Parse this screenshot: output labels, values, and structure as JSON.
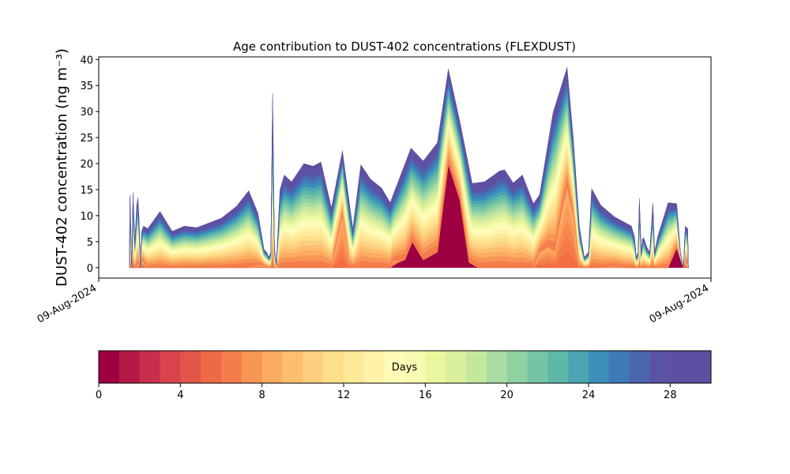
{
  "chart_data": {
    "type": "area",
    "title": "Age contribution to DUST-402 concentrations (FLEXDUST)",
    "ylabel": "DUST-402 concentration (ng m⁻³)",
    "xlabel": "",
    "ylim": [
      -2,
      40.5
    ],
    "y_ticks": [
      0,
      5,
      10,
      15,
      20,
      25,
      30,
      35,
      40
    ],
    "x_tick_labels": [
      "09-Aug-2024",
      "09-Aug-2024"
    ],
    "grid": false,
    "total": [
      [
        0.05,
        0
      ],
      [
        0.051,
        14
      ],
      [
        0.054,
        0
      ],
      [
        0.056,
        14.5
      ],
      [
        0.059,
        5
      ],
      [
        0.062,
        12
      ],
      [
        0.064,
        13.5
      ],
      [
        0.066,
        9
      ],
      [
        0.068,
        0
      ],
      [
        0.07,
        7
      ],
      [
        0.073,
        8
      ],
      [
        0.08,
        7.5
      ],
      [
        0.1,
        10.8
      ],
      [
        0.12,
        7
      ],
      [
        0.14,
        8
      ],
      [
        0.16,
        7.7
      ],
      [
        0.2,
        9.5
      ],
      [
        0.225,
        11.8
      ],
      [
        0.245,
        14.8
      ],
      [
        0.26,
        10.5
      ],
      [
        0.27,
        3.5
      ],
      [
        0.274,
        3
      ],
      [
        0.278,
        2
      ],
      [
        0.281,
        3
      ],
      [
        0.284,
        33.5
      ],
      [
        0.287,
        4
      ],
      [
        0.29,
        0.5
      ],
      [
        0.296,
        15
      ],
      [
        0.303,
        17.8
      ],
      [
        0.315,
        16.5
      ],
      [
        0.335,
        20
      ],
      [
        0.35,
        19.5
      ],
      [
        0.363,
        20.3
      ],
      [
        0.38,
        11.5
      ],
      [
        0.398,
        22.5
      ],
      [
        0.415,
        7.5
      ],
      [
        0.428,
        19.8
      ],
      [
        0.444,
        17
      ],
      [
        0.462,
        15.3
      ],
      [
        0.476,
        12.5
      ],
      [
        0.51,
        23
      ],
      [
        0.53,
        20.5
      ],
      [
        0.553,
        24
      ],
      [
        0.571,
        38.2
      ],
      [
        0.59,
        28
      ],
      [
        0.61,
        16.2
      ],
      [
        0.63,
        16.5
      ],
      [
        0.655,
        18.6
      ],
      [
        0.663,
        18.8
      ],
      [
        0.677,
        16.3
      ],
      [
        0.692,
        17.8
      ],
      [
        0.71,
        12.3
      ],
      [
        0.72,
        14
      ],
      [
        0.742,
        29.8
      ],
      [
        0.765,
        38.5
      ],
      [
        0.775,
        25
      ],
      [
        0.785,
        8
      ],
      [
        0.793,
        2
      ],
      [
        0.8,
        3
      ],
      [
        0.805,
        15.2
      ],
      [
        0.82,
        12
      ],
      [
        0.842,
        9.8
      ],
      [
        0.87,
        8
      ],
      [
        0.875,
        6
      ],
      [
        0.878,
        2
      ],
      [
        0.881,
        3
      ],
      [
        0.883,
        13.3
      ],
      [
        0.886,
        3
      ],
      [
        0.888,
        5.5
      ],
      [
        0.89,
        5.8
      ],
      [
        0.895,
        4
      ],
      [
        0.9,
        3
      ],
      [
        0.905,
        12.5
      ],
      [
        0.908,
        3
      ],
      [
        0.913,
        6
      ],
      [
        0.93,
        12.5
      ],
      [
        0.944,
        12.3
      ],
      [
        0.95,
        3
      ],
      [
        0.955,
        0
      ],
      [
        0.958,
        8
      ],
      [
        0.962,
        7.5
      ],
      [
        0.963,
        0
      ]
    ],
    "layers_note": "Stacked contribution by particle age (0–30 days), youngest at bottom",
    "young": [
      [
        0.05,
        0
      ],
      [
        0.06,
        0
      ],
      [
        0.07,
        1.5
      ],
      [
        0.08,
        0
      ],
      [
        0.15,
        0
      ],
      [
        0.245,
        0
      ],
      [
        0.265,
        0.5
      ],
      [
        0.28,
        0
      ],
      [
        0.29,
        0
      ],
      [
        0.38,
        0
      ],
      [
        0.398,
        10
      ],
      [
        0.41,
        0
      ],
      [
        0.462,
        0
      ],
      [
        0.476,
        0
      ],
      [
        0.48,
        1.2
      ],
      [
        0.5,
        1.5
      ],
      [
        0.512,
        5
      ],
      [
        0.53,
        1.5
      ],
      [
        0.553,
        3
      ],
      [
        0.571,
        20
      ],
      [
        0.59,
        13
      ],
      [
        0.605,
        1
      ],
      [
        0.62,
        0
      ],
      [
        0.71,
        0
      ],
      [
        0.72,
        3
      ],
      [
        0.735,
        4
      ],
      [
        0.745,
        3
      ],
      [
        0.755,
        10
      ],
      [
        0.765,
        15.5
      ],
      [
        0.775,
        10
      ],
      [
        0.785,
        0
      ],
      [
        0.82,
        0
      ],
      [
        0.843,
        0.3
      ],
      [
        0.86,
        0
      ],
      [
        0.93,
        0
      ],
      [
        0.944,
        3.8
      ],
      [
        0.955,
        0
      ],
      [
        0.958,
        1.5
      ],
      [
        0.963,
        0
      ]
    ],
    "deep_red": [
      [
        0.05,
        0
      ],
      [
        0.476,
        0
      ],
      [
        0.49,
        1
      ],
      [
        0.512,
        5
      ],
      [
        0.53,
        1.5
      ],
      [
        0.553,
        3
      ],
      [
        0.571,
        20
      ],
      [
        0.59,
        13
      ],
      [
        0.605,
        1
      ],
      [
        0.62,
        0
      ],
      [
        0.93,
        0
      ],
      [
        0.944,
        3.8
      ],
      [
        0.955,
        0
      ],
      [
        0.963,
        0
      ]
    ],
    "colorbar": {
      "label": "Days",
      "min": 0,
      "max": 30,
      "ticks": [
        0,
        4,
        8,
        12,
        16,
        20,
        24,
        28
      ],
      "colors": [
        "#9e0142",
        "#b41a46",
        "#c92f4c",
        "#d8434e",
        "#e2564a",
        "#ec6a45",
        "#f47d4c",
        "#f89555",
        "#fbac61",
        "#fdbf6f",
        "#fdcf80",
        "#fee08b",
        "#fee999",
        "#fff2a9",
        "#fffbb8",
        "#f7fcb2",
        "#eaf79f",
        "#d9ef9b",
        "#c4e79e",
        "#aadca4",
        "#90d1a4",
        "#75c5a4",
        "#5eb7a7",
        "#4ba4b1",
        "#3b8fba",
        "#3e7ab6",
        "#4b65ae",
        "#5a53a4",
        "#5e4fa2",
        "#5e4fa2"
      ]
    }
  }
}
